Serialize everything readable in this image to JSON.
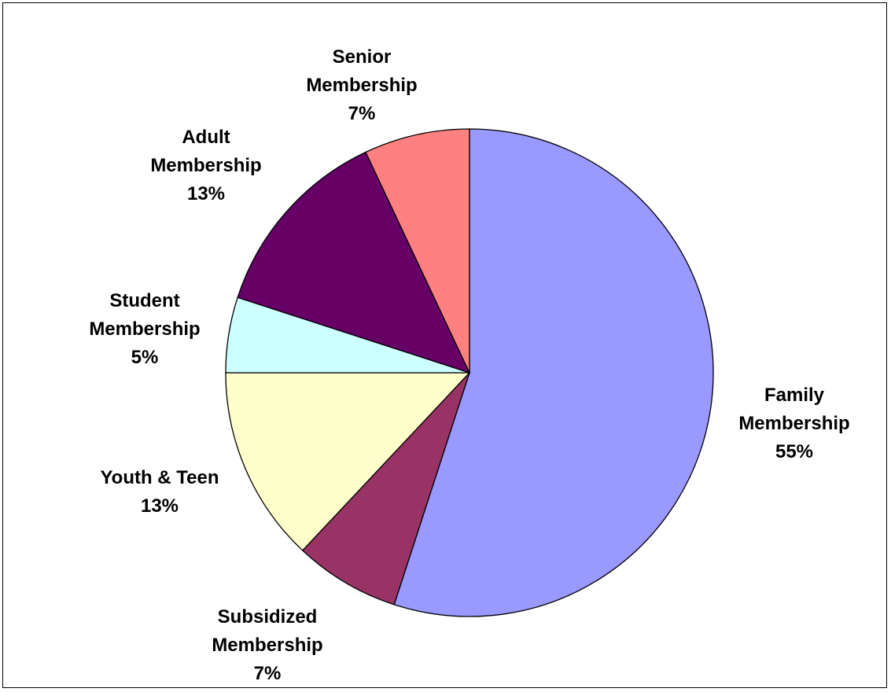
{
  "chart_data": {
    "type": "pie",
    "title": "",
    "start_angle_deg": 0,
    "direction": "clockwise",
    "slices": [
      {
        "label": [
          "Family",
          "Membership"
        ],
        "pct_label": "55%",
        "value": 55,
        "color": "#9999FF"
      },
      {
        "label": [
          "Subsidized",
          "Membership"
        ],
        "pct_label": "7%",
        "value": 7,
        "color": "#993366"
      },
      {
        "label": [
          "Youth & Teen"
        ],
        "pct_label": "13%",
        "value": 13,
        "color": "#FFFFCC"
      },
      {
        "label": [
          "Student",
          "Membership"
        ],
        "pct_label": "5%",
        "value": 5,
        "color": "#CCFFFF"
      },
      {
        "label": [
          "Adult",
          "Membership"
        ],
        "pct_label": "13%",
        "value": 13,
        "color": "#660066"
      },
      {
        "label": [
          "Senior",
          "Membership"
        ],
        "pct_label": "7%",
        "value": 7,
        "color": "#FF8080"
      }
    ]
  }
}
